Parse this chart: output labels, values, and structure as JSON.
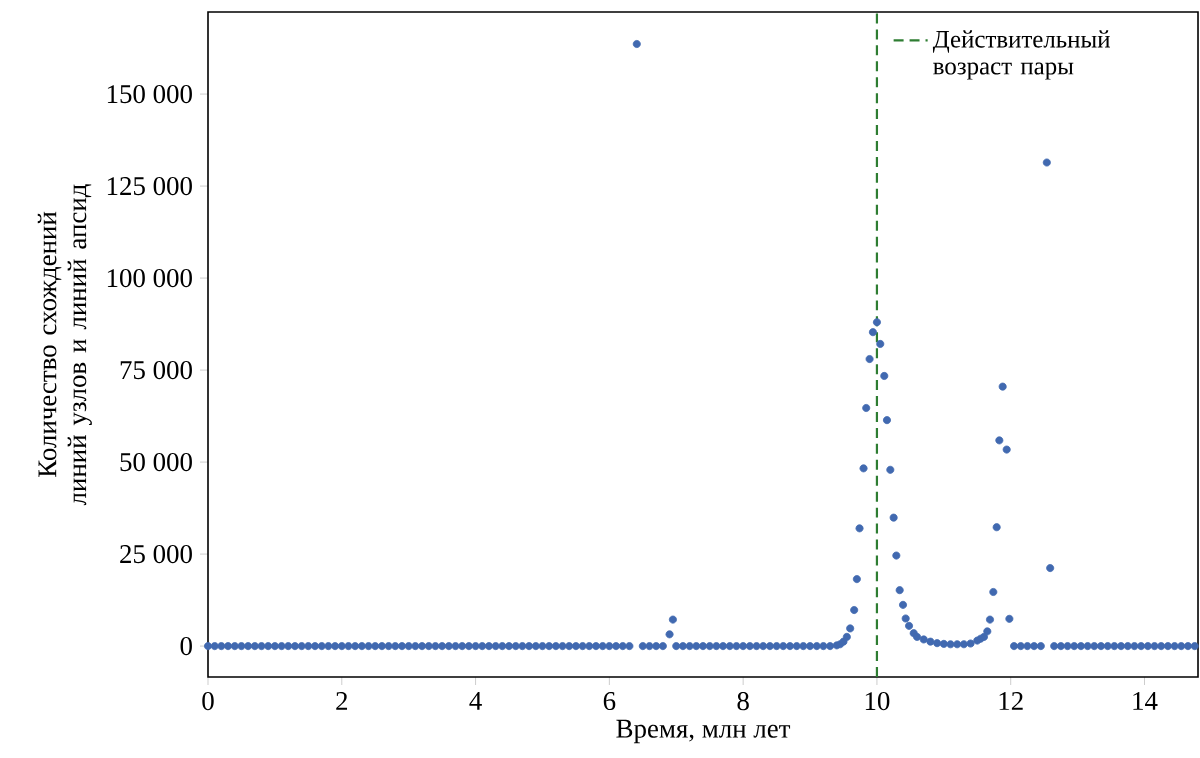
{
  "chart_data": {
    "type": "scatter",
    "xlabel": "Время, млн лет",
    "ylabel": "Количество схождений линий узлов и линий апсид",
    "xlim": [
      0,
      14.8
    ],
    "ylim": [
      -8400,
      172300
    ],
    "xticks": [
      0,
      2,
      4,
      6,
      8,
      10,
      12,
      14
    ],
    "yticks": [
      0,
      {
        "value": 25000,
        "label": "25 000"
      },
      {
        "value": 50000,
        "label": "50 000"
      },
      {
        "value": 75000,
        "label": "75 000"
      },
      {
        "value": 100000,
        "label": "100 000"
      },
      {
        "value": 125000,
        "label": "125 000"
      },
      {
        "value": 150000,
        "label": "150 000"
      }
    ],
    "marker": "circle",
    "legend": "top right",
    "ref_lines": [
      {
        "axis": "x",
        "value": 10,
        "label": "Действительный возраст пары",
        "color": "#2e7d32",
        "line_style": "dashed"
      }
    ],
    "series": [
      {
        "color": "#4169b0",
        "x": [
          0.0,
          0.1,
          0.2,
          0.3,
          0.4,
          0.5,
          0.6,
          0.7,
          0.8,
          0.9,
          1.0,
          1.1,
          1.2,
          1.3,
          1.4,
          1.5,
          1.6,
          1.7,
          1.8,
          1.9,
          2.0,
          2.1,
          2.2,
          2.3,
          2.4,
          2.5,
          2.6,
          2.7,
          2.8,
          2.9,
          3.0,
          3.1,
          3.2,
          3.3,
          3.4,
          3.5,
          3.6,
          3.7,
          3.8,
          3.9,
          4.0,
          4.1,
          4.2,
          4.3,
          4.4,
          4.5,
          4.6,
          4.7,
          4.8,
          4.9,
          5.0,
          5.1,
          5.2,
          5.3,
          5.4,
          5.5,
          5.6,
          5.7,
          5.8,
          5.9,
          6.0,
          6.1,
          6.2,
          6.3,
          6.41,
          6.5,
          6.6,
          6.7,
          6.8,
          6.9,
          6.95,
          7.0,
          7.1,
          7.2,
          7.3,
          7.4,
          7.5,
          7.6,
          7.7,
          7.8,
          7.9,
          8.0,
          8.1,
          8.2,
          8.3,
          8.4,
          8.5,
          8.6,
          8.7,
          8.8,
          8.9,
          9.0,
          9.1,
          9.2,
          9.3,
          9.4,
          9.45,
          9.5,
          9.55,
          9.6,
          9.66,
          9.7,
          9.74,
          9.8,
          9.84,
          9.89,
          9.94,
          10.0,
          10.05,
          10.11,
          10.15,
          10.2,
          10.25,
          10.29,
          10.34,
          10.39,
          10.43,
          10.48,
          10.55,
          10.6,
          10.7,
          10.8,
          10.9,
          11.0,
          11.1,
          11.2,
          11.3,
          11.4,
          11.5,
          11.55,
          11.6,
          11.65,
          11.69,
          11.74,
          11.79,
          11.83,
          11.88,
          11.94,
          11.98,
          12.05,
          12.15,
          12.25,
          12.35,
          12.45,
          12.54,
          12.59,
          12.65,
          12.75,
          12.85,
          12.95,
          13.05,
          13.15,
          13.25,
          13.35,
          13.45,
          13.55,
          13.65,
          13.75,
          13.85,
          13.95,
          14.05,
          14.15,
          14.25,
          14.35,
          14.45,
          14.55,
          14.65,
          14.75
        ],
        "values": [
          0,
          0,
          0,
          0,
          0,
          0,
          0,
          0,
          0,
          0,
          0,
          0,
          0,
          0,
          0,
          0,
          0,
          0,
          0,
          0,
          0,
          0,
          0,
          0,
          0,
          0,
          0,
          0,
          0,
          0,
          0,
          0,
          0,
          0,
          0,
          0,
          0,
          0,
          0,
          0,
          0,
          0,
          0,
          0,
          0,
          0,
          0,
          0,
          0,
          0,
          0,
          0,
          0,
          0,
          0,
          0,
          0,
          0,
          0,
          0,
          0,
          0,
          0,
          0,
          163600,
          0,
          0,
          0,
          0,
          3200,
          7200,
          0,
          0,
          0,
          0,
          0,
          0,
          0,
          0,
          0,
          0,
          0,
          0,
          0,
          0,
          0,
          0,
          0,
          0,
          0,
          0,
          0,
          0,
          0,
          0,
          200,
          500,
          1200,
          2500,
          4800,
          9800,
          18200,
          32000,
          48300,
          64700,
          78000,
          85300,
          88000,
          82100,
          73400,
          61400,
          47900,
          34900,
          24600,
          15200,
          11200,
          7500,
          5500,
          3500,
          2500,
          1800,
          1200,
          800,
          600,
          500,
          500,
          500,
          700,
          1500,
          2000,
          2500,
          4000,
          7200,
          14700,
          32300,
          55900,
          70500,
          53400,
          7400,
          0,
          0,
          0,
          0,
          0,
          131400,
          21200,
          0,
          0,
          0,
          0,
          0,
          0,
          0,
          0,
          0,
          0,
          0,
          0,
          0,
          0,
          0,
          0,
          0,
          0,
          0,
          0,
          0,
          0
        ]
      }
    ]
  }
}
